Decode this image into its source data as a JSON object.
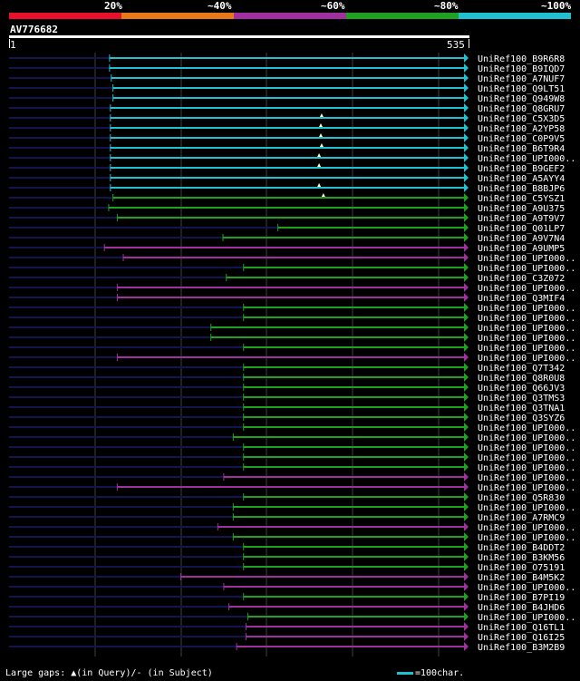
{
  "scale": {
    "colors": [
      "#e8102a",
      "#e87818",
      "#a030a0",
      "#20a020",
      "#20c0d0"
    ],
    "labels": [
      "20%",
      "~40%",
      "~60%",
      "~80%",
      "~100%"
    ]
  },
  "query": {
    "name": "AV776682",
    "start": "1",
    "end": "535",
    "length": 535
  },
  "legend": {
    "text": "Large gaps: ▲(in Query)/- (in Subject)",
    "scale_text": "=100char."
  },
  "chart_data": {
    "type": "alignment",
    "query_length": 535,
    "hits": [
      {
        "name": "UniRef100_B9R6R8",
        "start": 117,
        "end": 535,
        "color": "cyan",
        "marks": []
      },
      {
        "name": "UniRef100_B9IQD7",
        "start": 117,
        "end": 535,
        "color": "cyan",
        "marks": []
      },
      {
        "name": "UniRef100_A7NUF7",
        "start": 119,
        "end": 535,
        "color": "cyan",
        "marks": []
      },
      {
        "name": "UniRef100_Q9LT51",
        "start": 121,
        "end": 535,
        "color": "cyan",
        "marks": []
      },
      {
        "name": "UniRef100_Q949W8",
        "start": 121,
        "end": 535,
        "color": "cyan",
        "marks": []
      },
      {
        "name": "UniRef100_Q8GRU7",
        "start": 118,
        "end": 535,
        "color": "cyan",
        "marks": []
      },
      {
        "name": "UniRef100_C5X3D5",
        "start": 118,
        "end": 535,
        "color": "cyan",
        "marks": [
          364
        ]
      },
      {
        "name": "UniRef100_A2YP58",
        "start": 118,
        "end": 535,
        "color": "cyan",
        "marks": [
          363
        ]
      },
      {
        "name": "UniRef100_C0P9V5",
        "start": 118,
        "end": 535,
        "color": "cyan",
        "marks": [
          363
        ]
      },
      {
        "name": "UniRef100_B6T9R4",
        "start": 118,
        "end": 535,
        "color": "cyan",
        "marks": [
          364
        ]
      },
      {
        "name": "UniRef100_UPI000..",
        "start": 118,
        "end": 535,
        "color": "cyan",
        "marks": [
          361
        ]
      },
      {
        "name": "UniRef100_B9GEF2",
        "start": 118,
        "end": 535,
        "color": "cyan",
        "marks": [
          361
        ]
      },
      {
        "name": "UniRef100_A5AYY4",
        "start": 118,
        "end": 535,
        "color": "cyan",
        "marks": []
      },
      {
        "name": "UniRef100_B8BJP6",
        "start": 118,
        "end": 535,
        "color": "cyan",
        "marks": [
          361
        ]
      },
      {
        "name": "UniRef100_C5YSZ1",
        "start": 121,
        "end": 535,
        "color": "green",
        "marks": [
          366
        ]
      },
      {
        "name": "UniRef100_A9U375",
        "start": 116,
        "end": 535,
        "color": "green",
        "marks": []
      },
      {
        "name": "UniRef100_A9T9V7",
        "start": 126,
        "end": 535,
        "color": "green",
        "marks": []
      },
      {
        "name": "UniRef100_Q01LP7",
        "start": 313,
        "end": 535,
        "color": "green",
        "marks": []
      },
      {
        "name": "UniRef100_A9V7N4",
        "start": 249,
        "end": 535,
        "color": "green",
        "marks": []
      },
      {
        "name": "UniRef100_A9UMP5",
        "start": 111,
        "end": 535,
        "color": "magenta",
        "marks": []
      },
      {
        "name": "UniRef100_UPI000..",
        "start": 133,
        "end": 535,
        "color": "magenta",
        "marks": []
      },
      {
        "name": "UniRef100_UPI000..",
        "start": 273,
        "end": 535,
        "color": "green",
        "marks": []
      },
      {
        "name": "UniRef100_C3Z072",
        "start": 253,
        "end": 535,
        "color": "green",
        "marks": []
      },
      {
        "name": "UniRef100_UPI000..",
        "start": 126,
        "end": 535,
        "color": "magenta",
        "marks": []
      },
      {
        "name": "UniRef100_Q3MIF4",
        "start": 126,
        "end": 535,
        "color": "magenta",
        "marks": []
      },
      {
        "name": "UniRef100_UPI000..",
        "start": 273,
        "end": 535,
        "color": "green",
        "marks": []
      },
      {
        "name": "UniRef100_UPI000..",
        "start": 273,
        "end": 535,
        "color": "green",
        "marks": []
      },
      {
        "name": "UniRef100_UPI000..",
        "start": 235,
        "end": 535,
        "color": "green",
        "marks": []
      },
      {
        "name": "UniRef100_UPI000..",
        "start": 235,
        "end": 535,
        "color": "green",
        "marks": []
      },
      {
        "name": "UniRef100_UPI000..",
        "start": 273,
        "end": 535,
        "color": "green",
        "marks": []
      },
      {
        "name": "UniRef100_UPI000..",
        "start": 126,
        "end": 535,
        "color": "magenta",
        "marks": []
      },
      {
        "name": "UniRef100_Q7T342",
        "start": 273,
        "end": 535,
        "color": "green",
        "marks": []
      },
      {
        "name": "UniRef100_Q8R0U8",
        "start": 273,
        "end": 535,
        "color": "green",
        "marks": []
      },
      {
        "name": "UniRef100_Q66JV3",
        "start": 273,
        "end": 535,
        "color": "green",
        "marks": []
      },
      {
        "name": "UniRef100_Q3TMS3",
        "start": 273,
        "end": 535,
        "color": "green",
        "marks": []
      },
      {
        "name": "UniRef100_Q3TNA1",
        "start": 273,
        "end": 535,
        "color": "green",
        "marks": []
      },
      {
        "name": "UniRef100_Q3SYZ6",
        "start": 273,
        "end": 535,
        "color": "green",
        "marks": []
      },
      {
        "name": "UniRef100_UPI000..",
        "start": 273,
        "end": 535,
        "color": "green",
        "marks": []
      },
      {
        "name": "UniRef100_UPI000..",
        "start": 261,
        "end": 535,
        "color": "green",
        "marks": []
      },
      {
        "name": "UniRef100_UPI000..",
        "start": 273,
        "end": 535,
        "color": "green",
        "marks": []
      },
      {
        "name": "UniRef100_UPI000..",
        "start": 273,
        "end": 535,
        "color": "green",
        "marks": []
      },
      {
        "name": "UniRef100_UPI000..",
        "start": 273,
        "end": 535,
        "color": "green",
        "marks": []
      },
      {
        "name": "UniRef100_UPI000..",
        "start": 250,
        "end": 535,
        "color": "magenta",
        "marks": []
      },
      {
        "name": "UniRef100_UPI000..",
        "start": 126,
        "end": 535,
        "color": "magenta",
        "marks": []
      },
      {
        "name": "UniRef100_Q5R830",
        "start": 273,
        "end": 535,
        "color": "green",
        "marks": []
      },
      {
        "name": "UniRef100_UPI000..",
        "start": 261,
        "end": 535,
        "color": "green",
        "marks": []
      },
      {
        "name": "UniRef100_A7RMC9",
        "start": 261,
        "end": 535,
        "color": "green",
        "marks": []
      },
      {
        "name": "UniRef100_UPI000..",
        "start": 243,
        "end": 535,
        "color": "magenta",
        "marks": []
      },
      {
        "name": "UniRef100_UPI000..",
        "start": 261,
        "end": 535,
        "color": "green",
        "marks": []
      },
      {
        "name": "UniRef100_B4DDT2",
        "start": 273,
        "end": 535,
        "color": "green",
        "marks": []
      },
      {
        "name": "UniRef100_B3KM56",
        "start": 273,
        "end": 535,
        "color": "green",
        "marks": []
      },
      {
        "name": "UniRef100_O75191",
        "start": 273,
        "end": 535,
        "color": "green",
        "marks": []
      },
      {
        "name": "UniRef100_B4M5K2",
        "start": 200,
        "end": 535,
        "color": "magenta",
        "marks": []
      },
      {
        "name": "UniRef100_UPI000..",
        "start": 250,
        "end": 535,
        "color": "magenta",
        "marks": []
      },
      {
        "name": "UniRef100_B7PI19",
        "start": 273,
        "end": 535,
        "color": "green",
        "marks": []
      },
      {
        "name": "UniRef100_B4JHD6",
        "start": 256,
        "end": 535,
        "color": "magenta",
        "marks": []
      },
      {
        "name": "UniRef100_UPI000..",
        "start": 278,
        "end": 535,
        "color": "green",
        "marks": []
      },
      {
        "name": "UniRef100_Q16TL1",
        "start": 276,
        "end": 535,
        "color": "magenta",
        "marks": []
      },
      {
        "name": "UniRef100_Q16I25",
        "start": 276,
        "end": 535,
        "color": "magenta",
        "marks": []
      },
      {
        "name": "UniRef100_B3M2B9",
        "start": 265,
        "end": 535,
        "color": "magenta",
        "marks": []
      }
    ]
  }
}
